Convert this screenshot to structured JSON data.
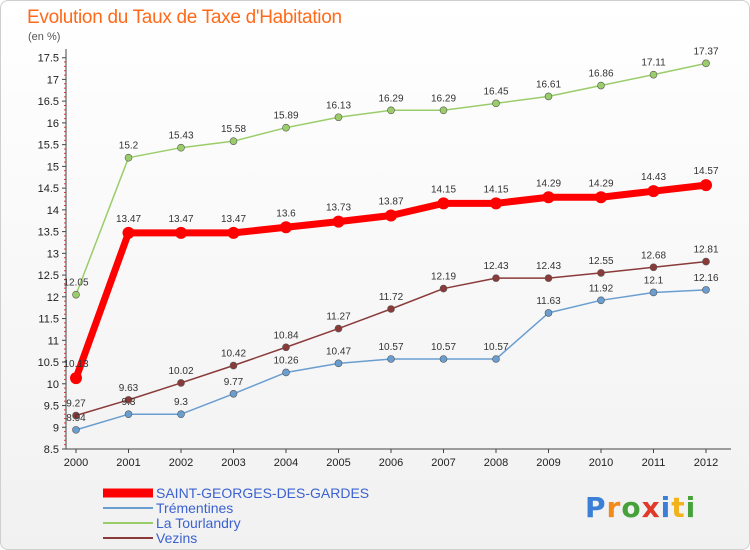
{
  "title": "Evolution du Taux de Taxe d'Habitation",
  "subtitle": "(en %)",
  "logo": {
    "text": "Proxiti",
    "colors": [
      "#3b7fd6",
      "#f28a1c",
      "#47a13b",
      "#e03a2b",
      "#3b7fd6",
      "#f2b21c",
      "#47a13b"
    ]
  },
  "chart_data": {
    "type": "line",
    "title": "Evolution du Taux de Taxe d'Habitation",
    "subtitle": "(en %)",
    "xlabel": "",
    "ylabel": "",
    "x": [
      "2000",
      "2001",
      "2002",
      "2003",
      "2004",
      "2005",
      "2006",
      "2007",
      "2008",
      "2009",
      "2010",
      "2011",
      "2012"
    ],
    "ylim": [
      8.5,
      17.7
    ],
    "yticks": [
      8.5,
      9,
      9.5,
      10,
      10.5,
      11,
      11.5,
      12,
      12.5,
      13,
      13.5,
      14,
      14.5,
      15,
      15.5,
      16,
      16.5,
      17,
      17.5
    ],
    "grid": false,
    "legend_position": "bottom-left",
    "series": [
      {
        "name": "SAINT-GEORGES-DES-GARDES",
        "color": "#ff0000",
        "width": 7,
        "marker": 6,
        "values": [
          10.13,
          13.47,
          13.47,
          13.47,
          13.6,
          13.73,
          13.87,
          14.15,
          14.15,
          14.29,
          14.29,
          14.43,
          14.57
        ],
        "labels": [
          "10.13",
          "13.47",
          "13.47",
          "13.47",
          "13.6",
          "13.73",
          "13.87",
          "14.15",
          "14.15",
          "14.29",
          "14.29",
          "14.43",
          "14.57"
        ]
      },
      {
        "name": "Trémentines",
        "color": "#6a9ed0",
        "width": 1.5,
        "marker": 3.5,
        "values": [
          8.94,
          9.3,
          9.3,
          9.77,
          10.26,
          10.47,
          10.57,
          10.57,
          10.57,
          11.63,
          11.92,
          12.1,
          12.16
        ],
        "labels": [
          "8.94",
          "9.3",
          "9.3",
          "9.77",
          "10.26",
          "10.47",
          "10.57",
          "10.57",
          "10.57",
          "11.63",
          "11.92",
          "12.1",
          "12.16"
        ]
      },
      {
        "name": "La Tourlandry",
        "color": "#9acd6a",
        "width": 1.5,
        "marker": 3.5,
        "values": [
          12.05,
          15.2,
          15.43,
          15.58,
          15.89,
          16.13,
          16.29,
          16.29,
          16.45,
          16.61,
          16.86,
          17.11,
          17.37
        ],
        "labels": [
          "12.05",
          "15.2",
          "15.43",
          "15.58",
          "15.89",
          "16.13",
          "16.29",
          "16.29",
          "16.45",
          "16.61",
          "16.86",
          "17.11",
          "17.37"
        ]
      },
      {
        "name": "Vezins",
        "color": "#8b3a3a",
        "width": 1.5,
        "marker": 3.5,
        "values": [
          9.27,
          9.63,
          10.02,
          10.42,
          10.84,
          11.27,
          11.72,
          12.19,
          12.43,
          12.43,
          12.55,
          12.68,
          12.81
        ],
        "labels": [
          "9.27",
          "9.63",
          "10.02",
          "10.42",
          "10.84",
          "11.27",
          "11.72",
          "12.19",
          "12.43",
          "12.43",
          "12.55",
          "12.68",
          "12.81"
        ]
      }
    ]
  }
}
